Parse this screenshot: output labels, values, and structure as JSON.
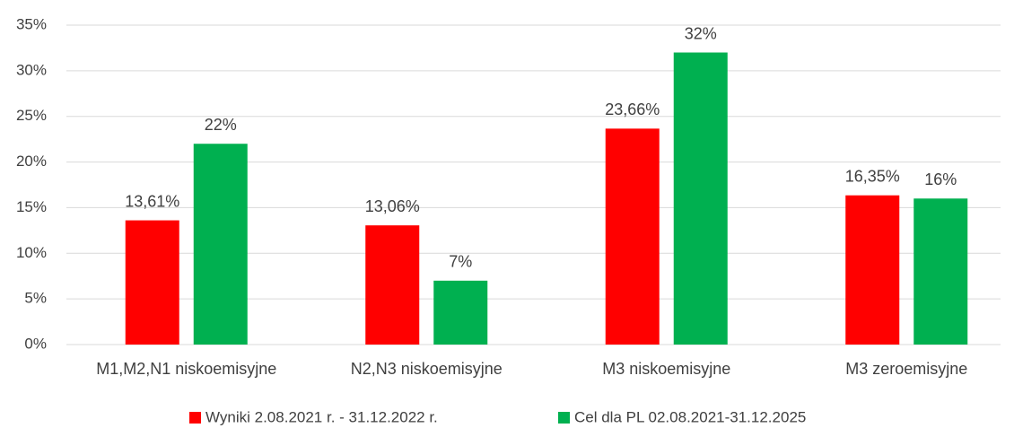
{
  "chart_data": {
    "type": "bar",
    "categories": [
      "M1,M2,N1 niskoemisyjne",
      "N2,N3 niskoemisyjne",
      "M3 niskoemisyjne",
      "M3 zeroemisyjne"
    ],
    "series": [
      {
        "name": "Wyniki 2.08.2021 r. - 31.12.2022 r.",
        "color": "#ff0000",
        "values": [
          13.61,
          13.06,
          23.66,
          16.35
        ],
        "value_labels": [
          "13,61%",
          "13,06%",
          "23,66%",
          "16,35%"
        ]
      },
      {
        "name": "Cel dla PL 02.08.2021-31.12.2025",
        "color": "#00b050",
        "values": [
          22,
          7,
          32,
          16
        ],
        "value_labels": [
          "22%",
          "7%",
          "32%",
          "16%"
        ]
      }
    ],
    "ylim": [
      0,
      35
    ],
    "yticks": [
      {
        "value": 0,
        "label": "0%"
      },
      {
        "value": 5,
        "label": "5%"
      },
      {
        "value": 10,
        "label": "10%"
      },
      {
        "value": 15,
        "label": "15%"
      },
      {
        "value": 20,
        "label": "20%"
      },
      {
        "value": 25,
        "label": "25%"
      },
      {
        "value": 30,
        "label": "30%"
      },
      {
        "value": 35,
        "label": "35%"
      }
    ],
    "grid": true,
    "legend": "bottom"
  }
}
